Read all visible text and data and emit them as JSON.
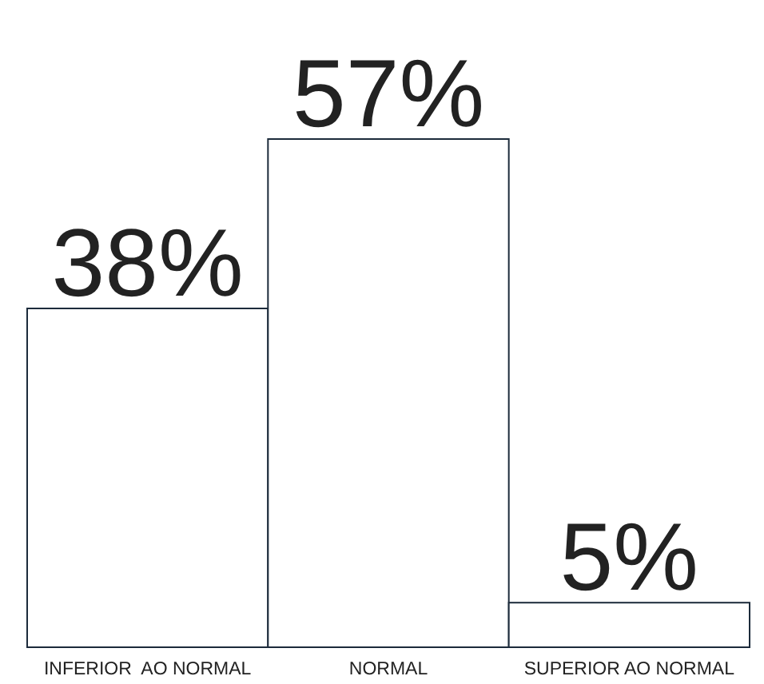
{
  "chart_data": {
    "type": "bar",
    "categories": [
      "INFERIOR  AO NORMAL",
      "NORMAL",
      "SUPERIOR AO NORMAL"
    ],
    "values": [
      38,
      57,
      5
    ],
    "value_labels": [
      "38%",
      "57%",
      "5%"
    ],
    "color": "#ffffff"
  }
}
